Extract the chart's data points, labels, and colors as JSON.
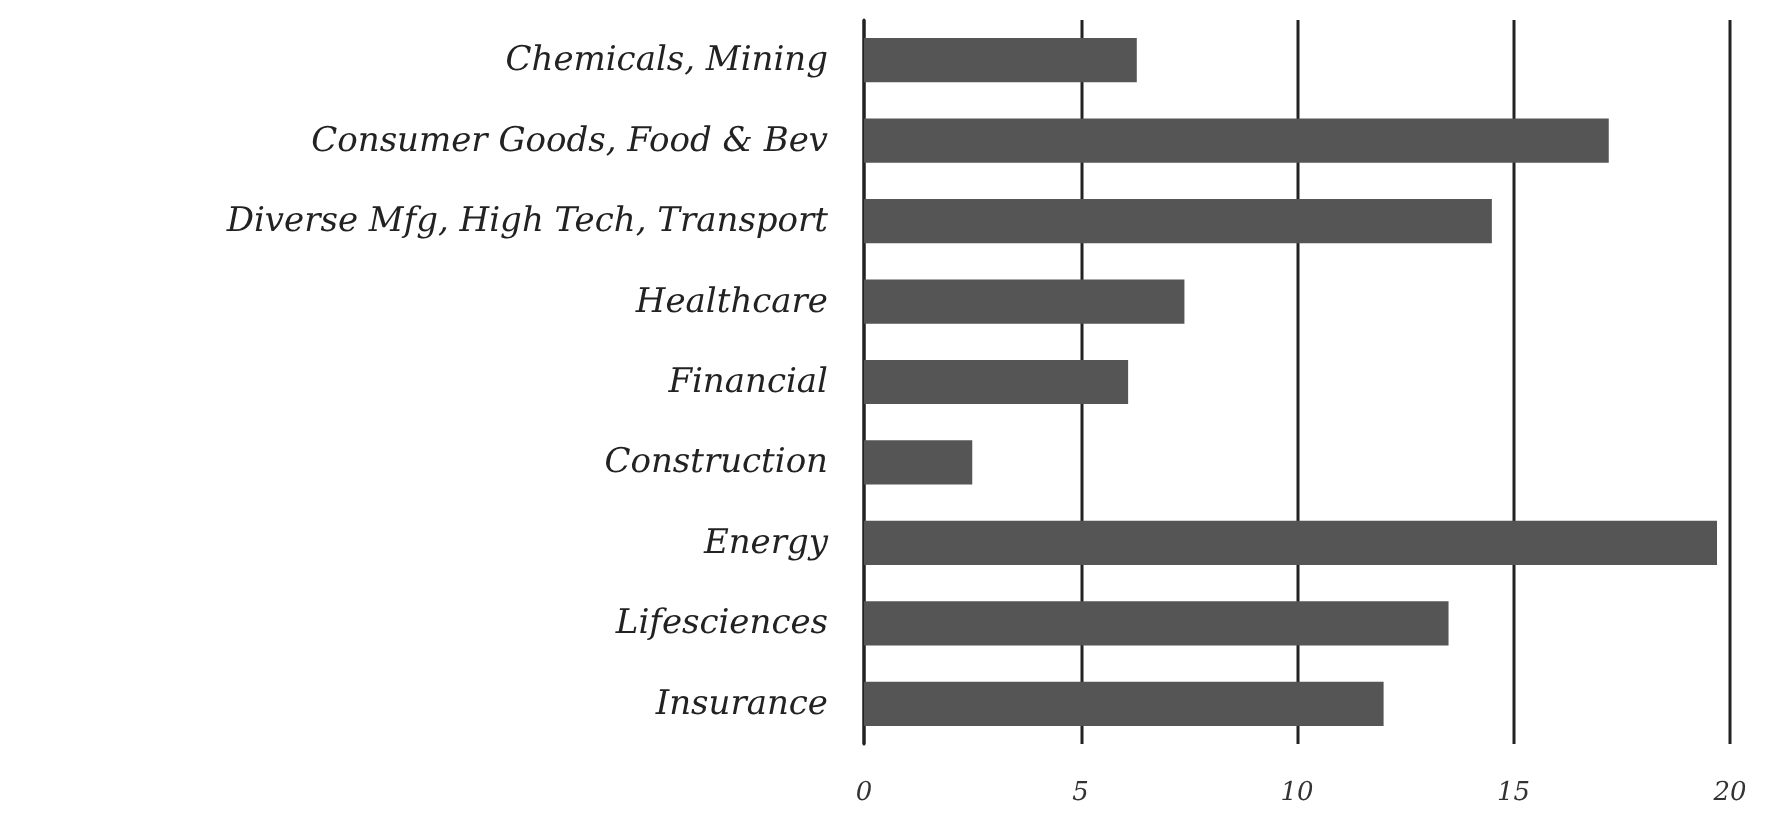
{
  "chart_data": {
    "type": "bar",
    "orientation": "horizontal",
    "categories": [
      "Chemicals, Mining",
      "Consumer Goods, Food & Bev",
      "Diverse Mfg, High Tech, Transport",
      "Healthcare",
      "Financial",
      "Construction",
      "Energy",
      "Lifesciences",
      "Insurance"
    ],
    "values": [
      6.3,
      17.2,
      14.5,
      7.4,
      6.1,
      2.5,
      19.7,
      13.5,
      12.0
    ],
    "color": "#555555",
    "xlim": [
      0,
      20
    ],
    "xticks": [
      0,
      5,
      10,
      15,
      20
    ],
    "grid": "x"
  }
}
